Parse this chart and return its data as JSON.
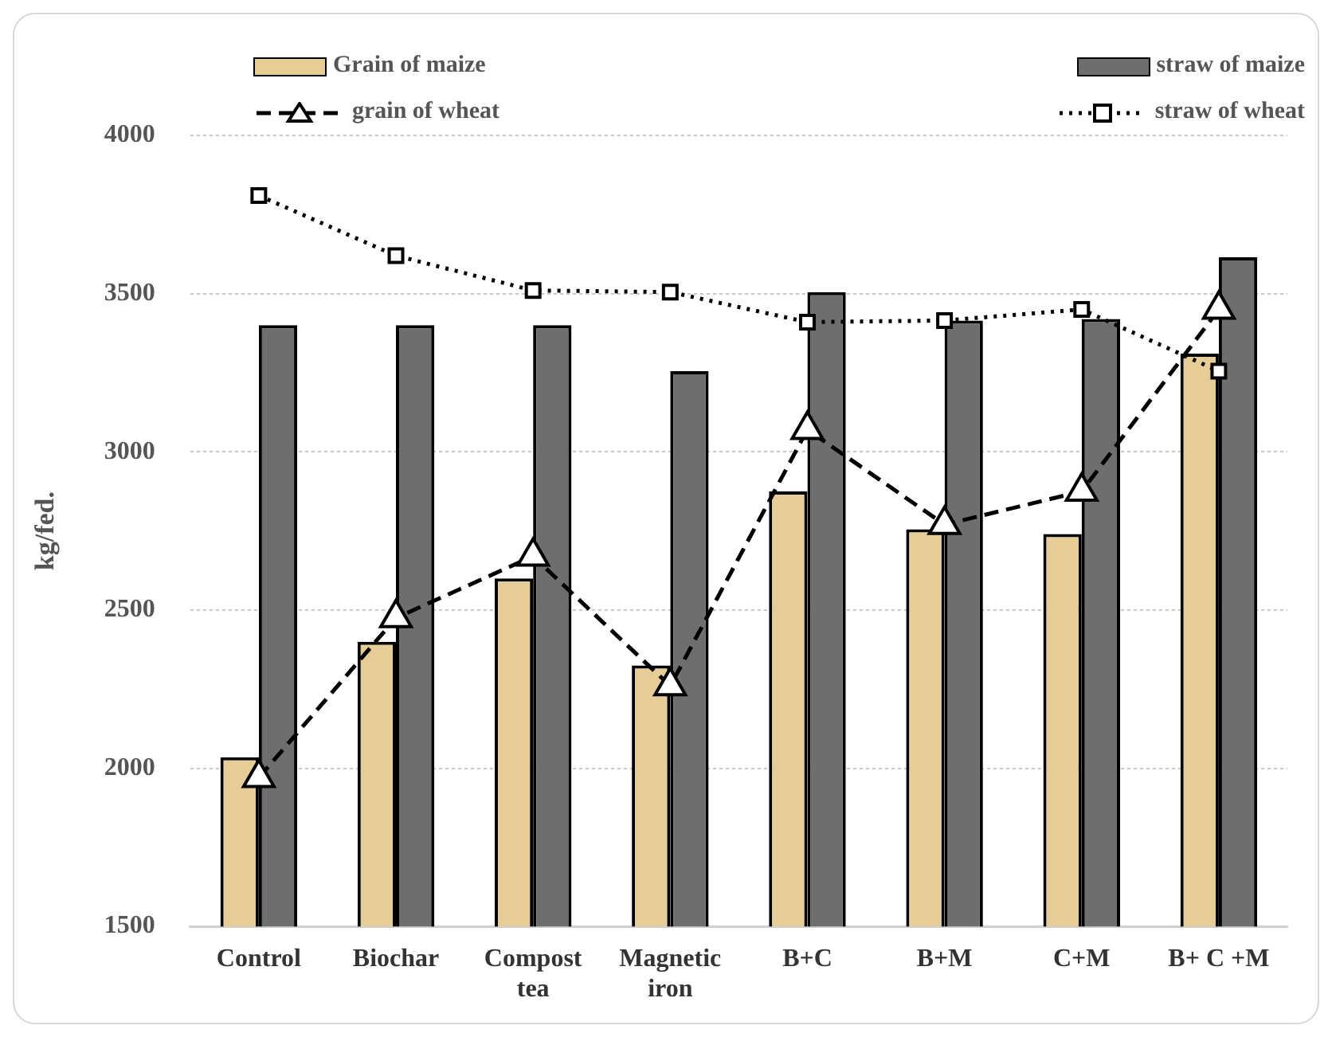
{
  "chart_data": {
    "type": "bar",
    "ylabel": "kg/fed.",
    "categories": [
      "Control",
      "Biochar",
      "Compost tea",
      "Magnetic iron",
      "B+C",
      "B+M",
      "C+M",
      "B+ C +M"
    ],
    "series": [
      {
        "name": "Grain of maize",
        "color": "#e6cc97",
        "values": [
          2035,
          2400,
          2600,
          2325,
          2875,
          2755,
          2740,
          3310
        ]
      },
      {
        "name": "straw of maize",
        "color": "#6e6e6e",
        "values": [
          3400,
          3400,
          3400,
          3255,
          3505,
          3415,
          3420,
          3615
        ]
      },
      {
        "name": "grain of wheat",
        "type": "line",
        "color": "#000000",
        "marker": "triangle",
        "line_style": "dashed",
        "values": [
          1970,
          2475,
          2670,
          2260,
          3070,
          2770,
          2875,
          3450
        ]
      },
      {
        "name": "straw of wheat",
        "type": "line",
        "color": "#000000",
        "marker": "square",
        "line_style": "dotted",
        "values": [
          3810,
          3620,
          3510,
          3505,
          3410,
          3415,
          3450,
          3255
        ]
      }
    ],
    "ylim": [
      1500,
      4000
    ],
    "yticks": [
      1500,
      2000,
      2500,
      3000,
      3500,
      4000
    ],
    "grid": "y",
    "legend": "top"
  }
}
